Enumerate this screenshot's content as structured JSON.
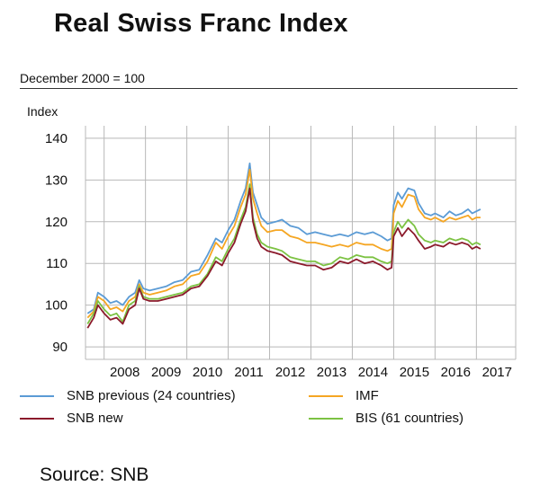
{
  "title": "Real Swiss Franc Index",
  "subtitle": "December 2000 = 100",
  "source": "Source: SNB",
  "chart_data": {
    "type": "line",
    "ylabel": "Index",
    "ylim": [
      87,
      143
    ],
    "xlim": [
      2007.55,
      2017.95
    ],
    "yticks": [
      90,
      100,
      110,
      120,
      130,
      140
    ],
    "xtick_labels": [
      "2008",
      "2009",
      "2010",
      "2011",
      "2012",
      "2013",
      "2014",
      "2015",
      "2016",
      "2017"
    ],
    "grid": true,
    "series": [
      {
        "name": "SNB previous (24 countries)",
        "color": "#5b9bd5",
        "points": [
          [
            2007.6,
            98
          ],
          [
            2007.75,
            99
          ],
          [
            2007.85,
            103
          ],
          [
            2008.0,
            102
          ],
          [
            2008.15,
            100.5
          ],
          [
            2008.3,
            101
          ],
          [
            2008.45,
            100
          ],
          [
            2008.6,
            102
          ],
          [
            2008.75,
            103
          ],
          [
            2008.85,
            106
          ],
          [
            2008.95,
            104
          ],
          [
            2009.1,
            103.5
          ],
          [
            2009.3,
            104
          ],
          [
            2009.5,
            104.5
          ],
          [
            2009.7,
            105.5
          ],
          [
            2009.9,
            106
          ],
          [
            2010.1,
            108
          ],
          [
            2010.3,
            108.5
          ],
          [
            2010.5,
            112
          ],
          [
            2010.7,
            116
          ],
          [
            2010.85,
            115
          ],
          [
            2011.0,
            118
          ],
          [
            2011.15,
            120.5
          ],
          [
            2011.3,
            125
          ],
          [
            2011.42,
            128
          ],
          [
            2011.52,
            134
          ],
          [
            2011.6,
            127
          ],
          [
            2011.7,
            124
          ],
          [
            2011.8,
            121
          ],
          [
            2011.95,
            119.5
          ],
          [
            2012.15,
            120
          ],
          [
            2012.3,
            120.5
          ],
          [
            2012.5,
            119
          ],
          [
            2012.7,
            118.5
          ],
          [
            2012.9,
            117
          ],
          [
            2013.1,
            117.5
          ],
          [
            2013.3,
            117
          ],
          [
            2013.5,
            116.5
          ],
          [
            2013.7,
            117
          ],
          [
            2013.9,
            116.5
          ],
          [
            2014.1,
            117.5
          ],
          [
            2014.3,
            117
          ],
          [
            2014.5,
            117.5
          ],
          [
            2014.7,
            116.5
          ],
          [
            2014.85,
            115.5
          ],
          [
            2014.95,
            116
          ],
          [
            2015.0,
            124
          ],
          [
            2015.1,
            127
          ],
          [
            2015.2,
            125.5
          ],
          [
            2015.35,
            128
          ],
          [
            2015.5,
            127.5
          ],
          [
            2015.6,
            124.5
          ],
          [
            2015.75,
            122
          ],
          [
            2015.9,
            121.5
          ],
          [
            2016.0,
            122
          ],
          [
            2016.2,
            121
          ],
          [
            2016.35,
            122.5
          ],
          [
            2016.5,
            121.5
          ],
          [
            2016.65,
            122
          ],
          [
            2016.8,
            123
          ],
          [
            2016.9,
            122
          ],
          [
            2017.0,
            122.5
          ],
          [
            2017.1,
            123
          ]
        ]
      },
      {
        "name": "IMF",
        "color": "#f5a623",
        "points": [
          [
            2007.6,
            97
          ],
          [
            2007.75,
            98.5
          ],
          [
            2007.85,
            102
          ],
          [
            2008.0,
            101
          ],
          [
            2008.15,
            99
          ],
          [
            2008.3,
            99.5
          ],
          [
            2008.45,
            98.5
          ],
          [
            2008.6,
            101
          ],
          [
            2008.75,
            102
          ],
          [
            2008.85,
            105
          ],
          [
            2008.95,
            103
          ],
          [
            2009.1,
            102.5
          ],
          [
            2009.3,
            103
          ],
          [
            2009.5,
            103.5
          ],
          [
            2009.7,
            104.5
          ],
          [
            2009.9,
            105
          ],
          [
            2010.1,
            107
          ],
          [
            2010.3,
            107.5
          ],
          [
            2010.5,
            110.5
          ],
          [
            2010.7,
            115
          ],
          [
            2010.85,
            113.5
          ],
          [
            2011.0,
            116.5
          ],
          [
            2011.15,
            119
          ],
          [
            2011.3,
            123.5
          ],
          [
            2011.42,
            126.5
          ],
          [
            2011.52,
            132.5
          ],
          [
            2011.6,
            125.5
          ],
          [
            2011.7,
            122
          ],
          [
            2011.8,
            119
          ],
          [
            2011.95,
            117.5
          ],
          [
            2012.15,
            118
          ],
          [
            2012.3,
            118
          ],
          [
            2012.5,
            116.5
          ],
          [
            2012.7,
            116
          ],
          [
            2012.9,
            115
          ],
          [
            2013.1,
            115
          ],
          [
            2013.3,
            114.5
          ],
          [
            2013.5,
            114
          ],
          [
            2013.7,
            114.5
          ],
          [
            2013.9,
            114
          ],
          [
            2014.1,
            115
          ],
          [
            2014.3,
            114.5
          ],
          [
            2014.5,
            114.5
          ],
          [
            2014.7,
            113.5
          ],
          [
            2014.85,
            113
          ],
          [
            2014.95,
            113.5
          ],
          [
            2015.0,
            122
          ],
          [
            2015.1,
            125
          ],
          [
            2015.2,
            123.5
          ],
          [
            2015.35,
            126.5
          ],
          [
            2015.5,
            126
          ],
          [
            2015.6,
            123
          ],
          [
            2015.75,
            121
          ],
          [
            2015.9,
            120.5
          ],
          [
            2016.0,
            121
          ],
          [
            2016.2,
            120
          ],
          [
            2016.35,
            121
          ],
          [
            2016.5,
            120.5
          ],
          [
            2016.65,
            121
          ],
          [
            2016.8,
            121.5
          ],
          [
            2016.9,
            120.5
          ],
          [
            2017.0,
            121
          ],
          [
            2017.1,
            121
          ]
        ]
      },
      {
        "name": "SNB new",
        "color": "#8b1a2b",
        "points": [
          [
            2007.6,
            94.5
          ],
          [
            2007.75,
            97
          ],
          [
            2007.85,
            100
          ],
          [
            2008.0,
            98
          ],
          [
            2008.15,
            96.5
          ],
          [
            2008.3,
            97
          ],
          [
            2008.45,
            95.5
          ],
          [
            2008.6,
            99
          ],
          [
            2008.75,
            100
          ],
          [
            2008.85,
            104
          ],
          [
            2008.95,
            101.5
          ],
          [
            2009.1,
            101
          ],
          [
            2009.3,
            101
          ],
          [
            2009.5,
            101.5
          ],
          [
            2009.7,
            102
          ],
          [
            2009.9,
            102.5
          ],
          [
            2010.1,
            104
          ],
          [
            2010.3,
            104.5
          ],
          [
            2010.5,
            107
          ],
          [
            2010.7,
            110.5
          ],
          [
            2010.85,
            109.5
          ],
          [
            2011.0,
            112.5
          ],
          [
            2011.15,
            115
          ],
          [
            2011.3,
            119.5
          ],
          [
            2011.42,
            122.5
          ],
          [
            2011.52,
            128
          ],
          [
            2011.6,
            120
          ],
          [
            2011.7,
            116
          ],
          [
            2011.8,
            114
          ],
          [
            2011.95,
            113
          ],
          [
            2012.15,
            112.5
          ],
          [
            2012.3,
            112
          ],
          [
            2012.5,
            110.5
          ],
          [
            2012.7,
            110
          ],
          [
            2012.9,
            109.5
          ],
          [
            2013.1,
            109.5
          ],
          [
            2013.3,
            108.5
          ],
          [
            2013.5,
            109
          ],
          [
            2013.7,
            110.5
          ],
          [
            2013.9,
            110
          ],
          [
            2014.1,
            111
          ],
          [
            2014.3,
            110
          ],
          [
            2014.5,
            110.5
          ],
          [
            2014.7,
            109.5
          ],
          [
            2014.85,
            108.5
          ],
          [
            2014.95,
            109
          ],
          [
            2015.0,
            116.5
          ],
          [
            2015.1,
            118.5
          ],
          [
            2015.2,
            116.5
          ],
          [
            2015.35,
            118.5
          ],
          [
            2015.5,
            117
          ],
          [
            2015.6,
            115.5
          ],
          [
            2015.75,
            113.5
          ],
          [
            2015.9,
            114
          ],
          [
            2016.0,
            114.5
          ],
          [
            2016.2,
            114
          ],
          [
            2016.35,
            115
          ],
          [
            2016.5,
            114.5
          ],
          [
            2016.65,
            115
          ],
          [
            2016.8,
            114.5
          ],
          [
            2016.9,
            113.5
          ],
          [
            2017.0,
            114
          ],
          [
            2017.1,
            113.5
          ]
        ]
      },
      {
        "name": "BIS (61 countries)",
        "color": "#7cc242",
        "points": [
          [
            2007.6,
            95.5
          ],
          [
            2007.75,
            98
          ],
          [
            2007.85,
            101
          ],
          [
            2008.0,
            99
          ],
          [
            2008.15,
            97.5
          ],
          [
            2008.3,
            98
          ],
          [
            2008.45,
            96
          ],
          [
            2008.6,
            100
          ],
          [
            2008.75,
            101
          ],
          [
            2008.85,
            104.5
          ],
          [
            2008.95,
            102
          ],
          [
            2009.1,
            101.5
          ],
          [
            2009.3,
            101.5
          ],
          [
            2009.5,
            102
          ],
          [
            2009.7,
            102.5
          ],
          [
            2009.9,
            103
          ],
          [
            2010.1,
            104.5
          ],
          [
            2010.3,
            105
          ],
          [
            2010.5,
            107.5
          ],
          [
            2010.7,
            111.5
          ],
          [
            2010.85,
            110.5
          ],
          [
            2011.0,
            113.5
          ],
          [
            2011.15,
            116
          ],
          [
            2011.3,
            120.5
          ],
          [
            2011.42,
            123.5
          ],
          [
            2011.52,
            129
          ],
          [
            2011.6,
            121
          ],
          [
            2011.7,
            117
          ],
          [
            2011.8,
            115
          ],
          [
            2011.95,
            114
          ],
          [
            2012.15,
            113.5
          ],
          [
            2012.3,
            113
          ],
          [
            2012.5,
            111.5
          ],
          [
            2012.7,
            111
          ],
          [
            2012.9,
            110.5
          ],
          [
            2013.1,
            110.5
          ],
          [
            2013.3,
            109.5
          ],
          [
            2013.5,
            110
          ],
          [
            2013.7,
            111.5
          ],
          [
            2013.9,
            111
          ],
          [
            2014.1,
            112
          ],
          [
            2014.3,
            111.5
          ],
          [
            2014.5,
            111.5
          ],
          [
            2014.7,
            110.5
          ],
          [
            2014.85,
            110
          ],
          [
            2014.95,
            110.5
          ],
          [
            2015.0,
            117.5
          ],
          [
            2015.1,
            120
          ],
          [
            2015.2,
            118.5
          ],
          [
            2015.35,
            120.5
          ],
          [
            2015.5,
            119
          ],
          [
            2015.6,
            117
          ],
          [
            2015.75,
            115.5
          ],
          [
            2015.9,
            115
          ],
          [
            2016.0,
            115.5
          ],
          [
            2016.2,
            115
          ],
          [
            2016.35,
            116
          ],
          [
            2016.5,
            115.5
          ],
          [
            2016.65,
            116
          ],
          [
            2016.8,
            115.5
          ],
          [
            2016.9,
            114.5
          ],
          [
            2017.0,
            115
          ],
          [
            2017.1,
            114.5
          ]
        ]
      }
    ]
  }
}
